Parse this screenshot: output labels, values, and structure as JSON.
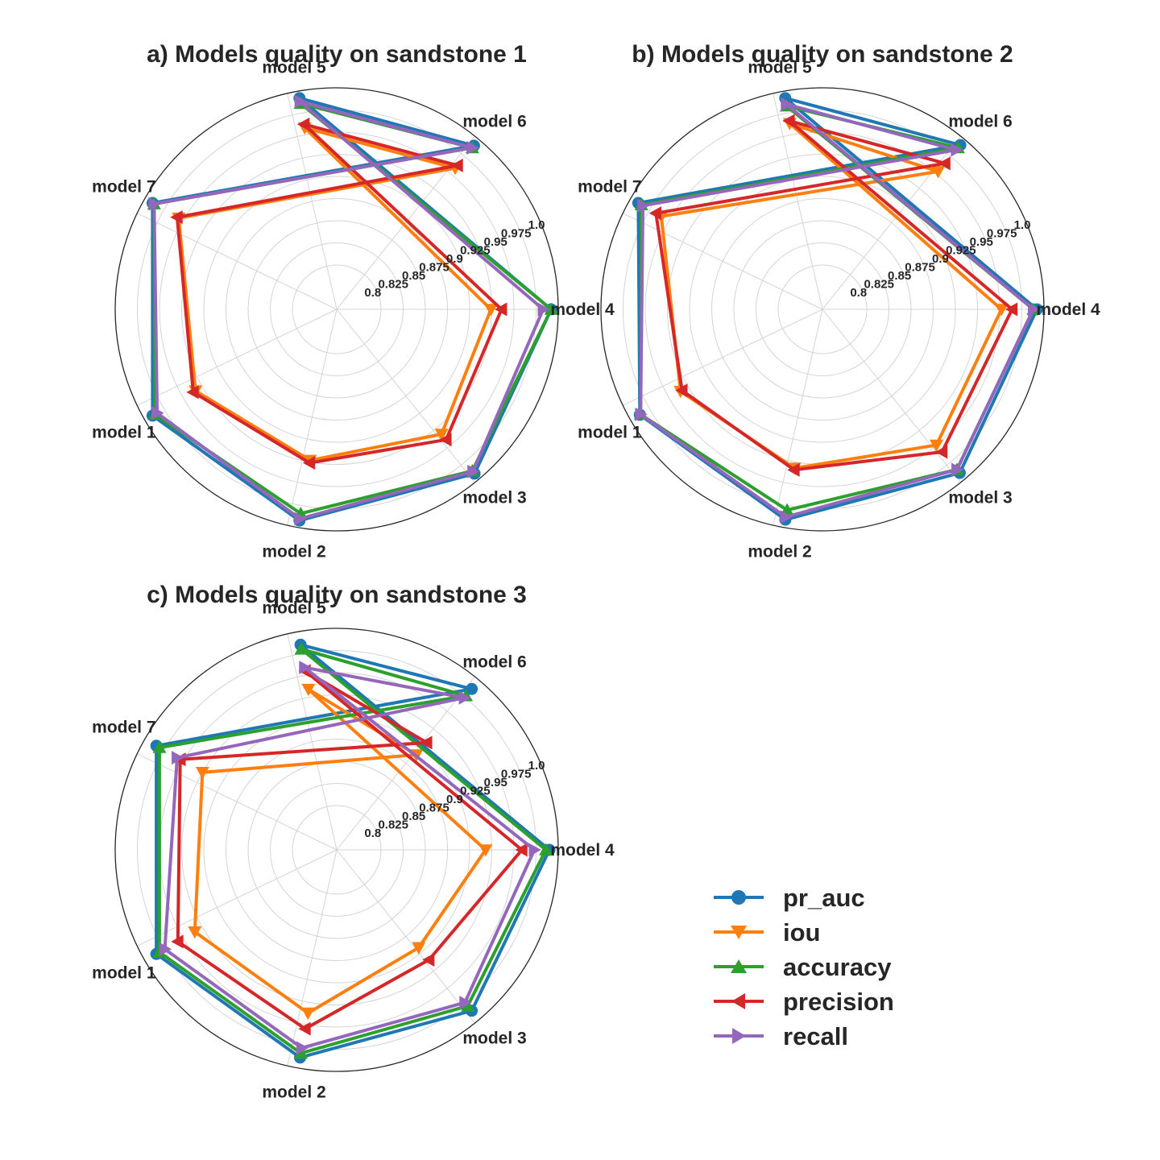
{
  "legend": {
    "items": [
      {
        "label": "pr_auc",
        "color": "#1f77b4",
        "marker": "circle"
      },
      {
        "label": "iou",
        "color": "#ff7f0e",
        "marker": "triangle-down"
      },
      {
        "label": "accuracy",
        "color": "#2ca02c",
        "marker": "triangle-up"
      },
      {
        "label": "precision",
        "color": "#d62728",
        "marker": "triangle-left"
      },
      {
        "label": "recall",
        "color": "#9467bd",
        "marker": "triangle-right"
      }
    ]
  },
  "chart_data": [
    {
      "type": "radar",
      "title": "a) Models quality on sandstone 1",
      "categories": [
        "model 4",
        "model 5",
        "model 6",
        "model 7",
        "model 1",
        "model 2",
        "model 3"
      ],
      "category_angles_deg": [
        0,
        100,
        50,
        150,
        210,
        260,
        310
      ],
      "rlim": [
        0.75,
        1.0
      ],
      "rticks": [
        0.8,
        0.825,
        0.85,
        0.875,
        0.9,
        0.925,
        0.95,
        0.975,
        1.0
      ],
      "rtick_labels": [
        "0.8",
        "0.825",
        "0.85",
        "0.875",
        "0.9",
        "0.925",
        "0.95",
        "0.975",
        "1.0"
      ],
      "grid": true,
      "series": [
        {
          "name": "pr_auc",
          "values": [
            0.992,
            0.992,
            0.991,
            0.99,
            0.99,
            0.992,
            0.992
          ]
        },
        {
          "name": "iou",
          "values": [
            0.924,
            0.958,
            0.958,
            0.956,
            0.934,
            0.923,
            0.934
          ]
        },
        {
          "name": "accuracy",
          "values": [
            0.992,
            0.986,
            0.988,
            0.988,
            0.987,
            0.984,
            0.988
          ]
        },
        {
          "name": "precision",
          "values": [
            0.936,
            0.962,
            0.962,
            0.958,
            0.937,
            0.926,
            0.942
          ]
        },
        {
          "name": "recall",
          "values": [
            0.983,
            0.988,
            0.988,
            0.988,
            0.984,
            0.99,
            0.989
          ]
        }
      ]
    },
    {
      "type": "radar",
      "title": "b) Models quality on sandstone 2",
      "categories": [
        "model 4",
        "model 5",
        "model 6",
        "model 7",
        "model 1",
        "model 2",
        "model 3"
      ],
      "category_angles_deg": [
        0,
        100,
        50,
        150,
        210,
        260,
        310
      ],
      "rlim": [
        0.75,
        1.0
      ],
      "rticks": [
        0.8,
        0.825,
        0.85,
        0.875,
        0.9,
        0.925,
        0.95,
        0.975,
        1.0
      ],
      "rtick_labels": [
        "0.8",
        "0.825",
        "0.85",
        "0.875",
        "0.9",
        "0.925",
        "0.95",
        "0.975",
        "1.0"
      ],
      "grid": true,
      "series": [
        {
          "name": "pr_auc",
          "values": [
            0.992,
            0.992,
            0.992,
            0.99,
            0.988,
            0.991,
            0.991
          ]
        },
        {
          "name": "iou",
          "values": [
            0.952,
            0.963,
            0.953,
            0.96,
            0.935,
            0.932,
            0.95
          ]
        },
        {
          "name": "accuracy",
          "values": [
            0.988,
            0.983,
            0.988,
            0.986,
            0.987,
            0.98,
            0.986
          ]
        },
        {
          "name": "precision",
          "values": [
            0.964,
            0.966,
            0.965,
            0.967,
            0.933,
            0.934,
            0.96
          ]
        },
        {
          "name": "recall",
          "values": [
            0.988,
            0.985,
            0.985,
            0.984,
            0.987,
            0.988,
            0.986
          ]
        }
      ]
    },
    {
      "type": "radar",
      "title": "c) Models quality on sandstone 3",
      "categories": [
        "model 4",
        "model 5",
        "model 6",
        "model 7",
        "model 1",
        "model 2",
        "model 3"
      ],
      "category_angles_deg": [
        0,
        100,
        50,
        150,
        210,
        260,
        310
      ],
      "rlim": [
        0.75,
        1.0
      ],
      "rticks": [
        0.8,
        0.825,
        0.85,
        0.875,
        0.9,
        0.925,
        0.95,
        0.975,
        1.0
      ],
      "rtick_labels": [
        "0.8",
        "0.825",
        "0.85",
        "0.875",
        "0.9",
        "0.925",
        "0.95",
        "0.975",
        "1.0"
      ],
      "grid": true,
      "series": [
        {
          "name": "pr_auc",
          "values": [
            0.99,
            0.985,
            0.987,
            0.985,
            0.985,
            0.988,
            0.987
          ]
        },
        {
          "name": "iou",
          "values": [
            0.918,
            0.934,
            0.89,
            0.925,
            0.935,
            0.937,
            0.894
          ]
        },
        {
          "name": "accuracy",
          "values": [
            0.986,
            0.98,
            0.977,
            0.981,
            0.981,
            0.983,
            0.98
          ]
        },
        {
          "name": "precision",
          "values": [
            0.959,
            0.955,
            0.908,
            0.954,
            0.957,
            0.955,
            0.912
          ]
        },
        {
          "name": "recall",
          "values": [
            0.973,
            0.959,
            0.974,
            0.958,
            0.974,
            0.977,
            0.975
          ]
        }
      ]
    }
  ]
}
